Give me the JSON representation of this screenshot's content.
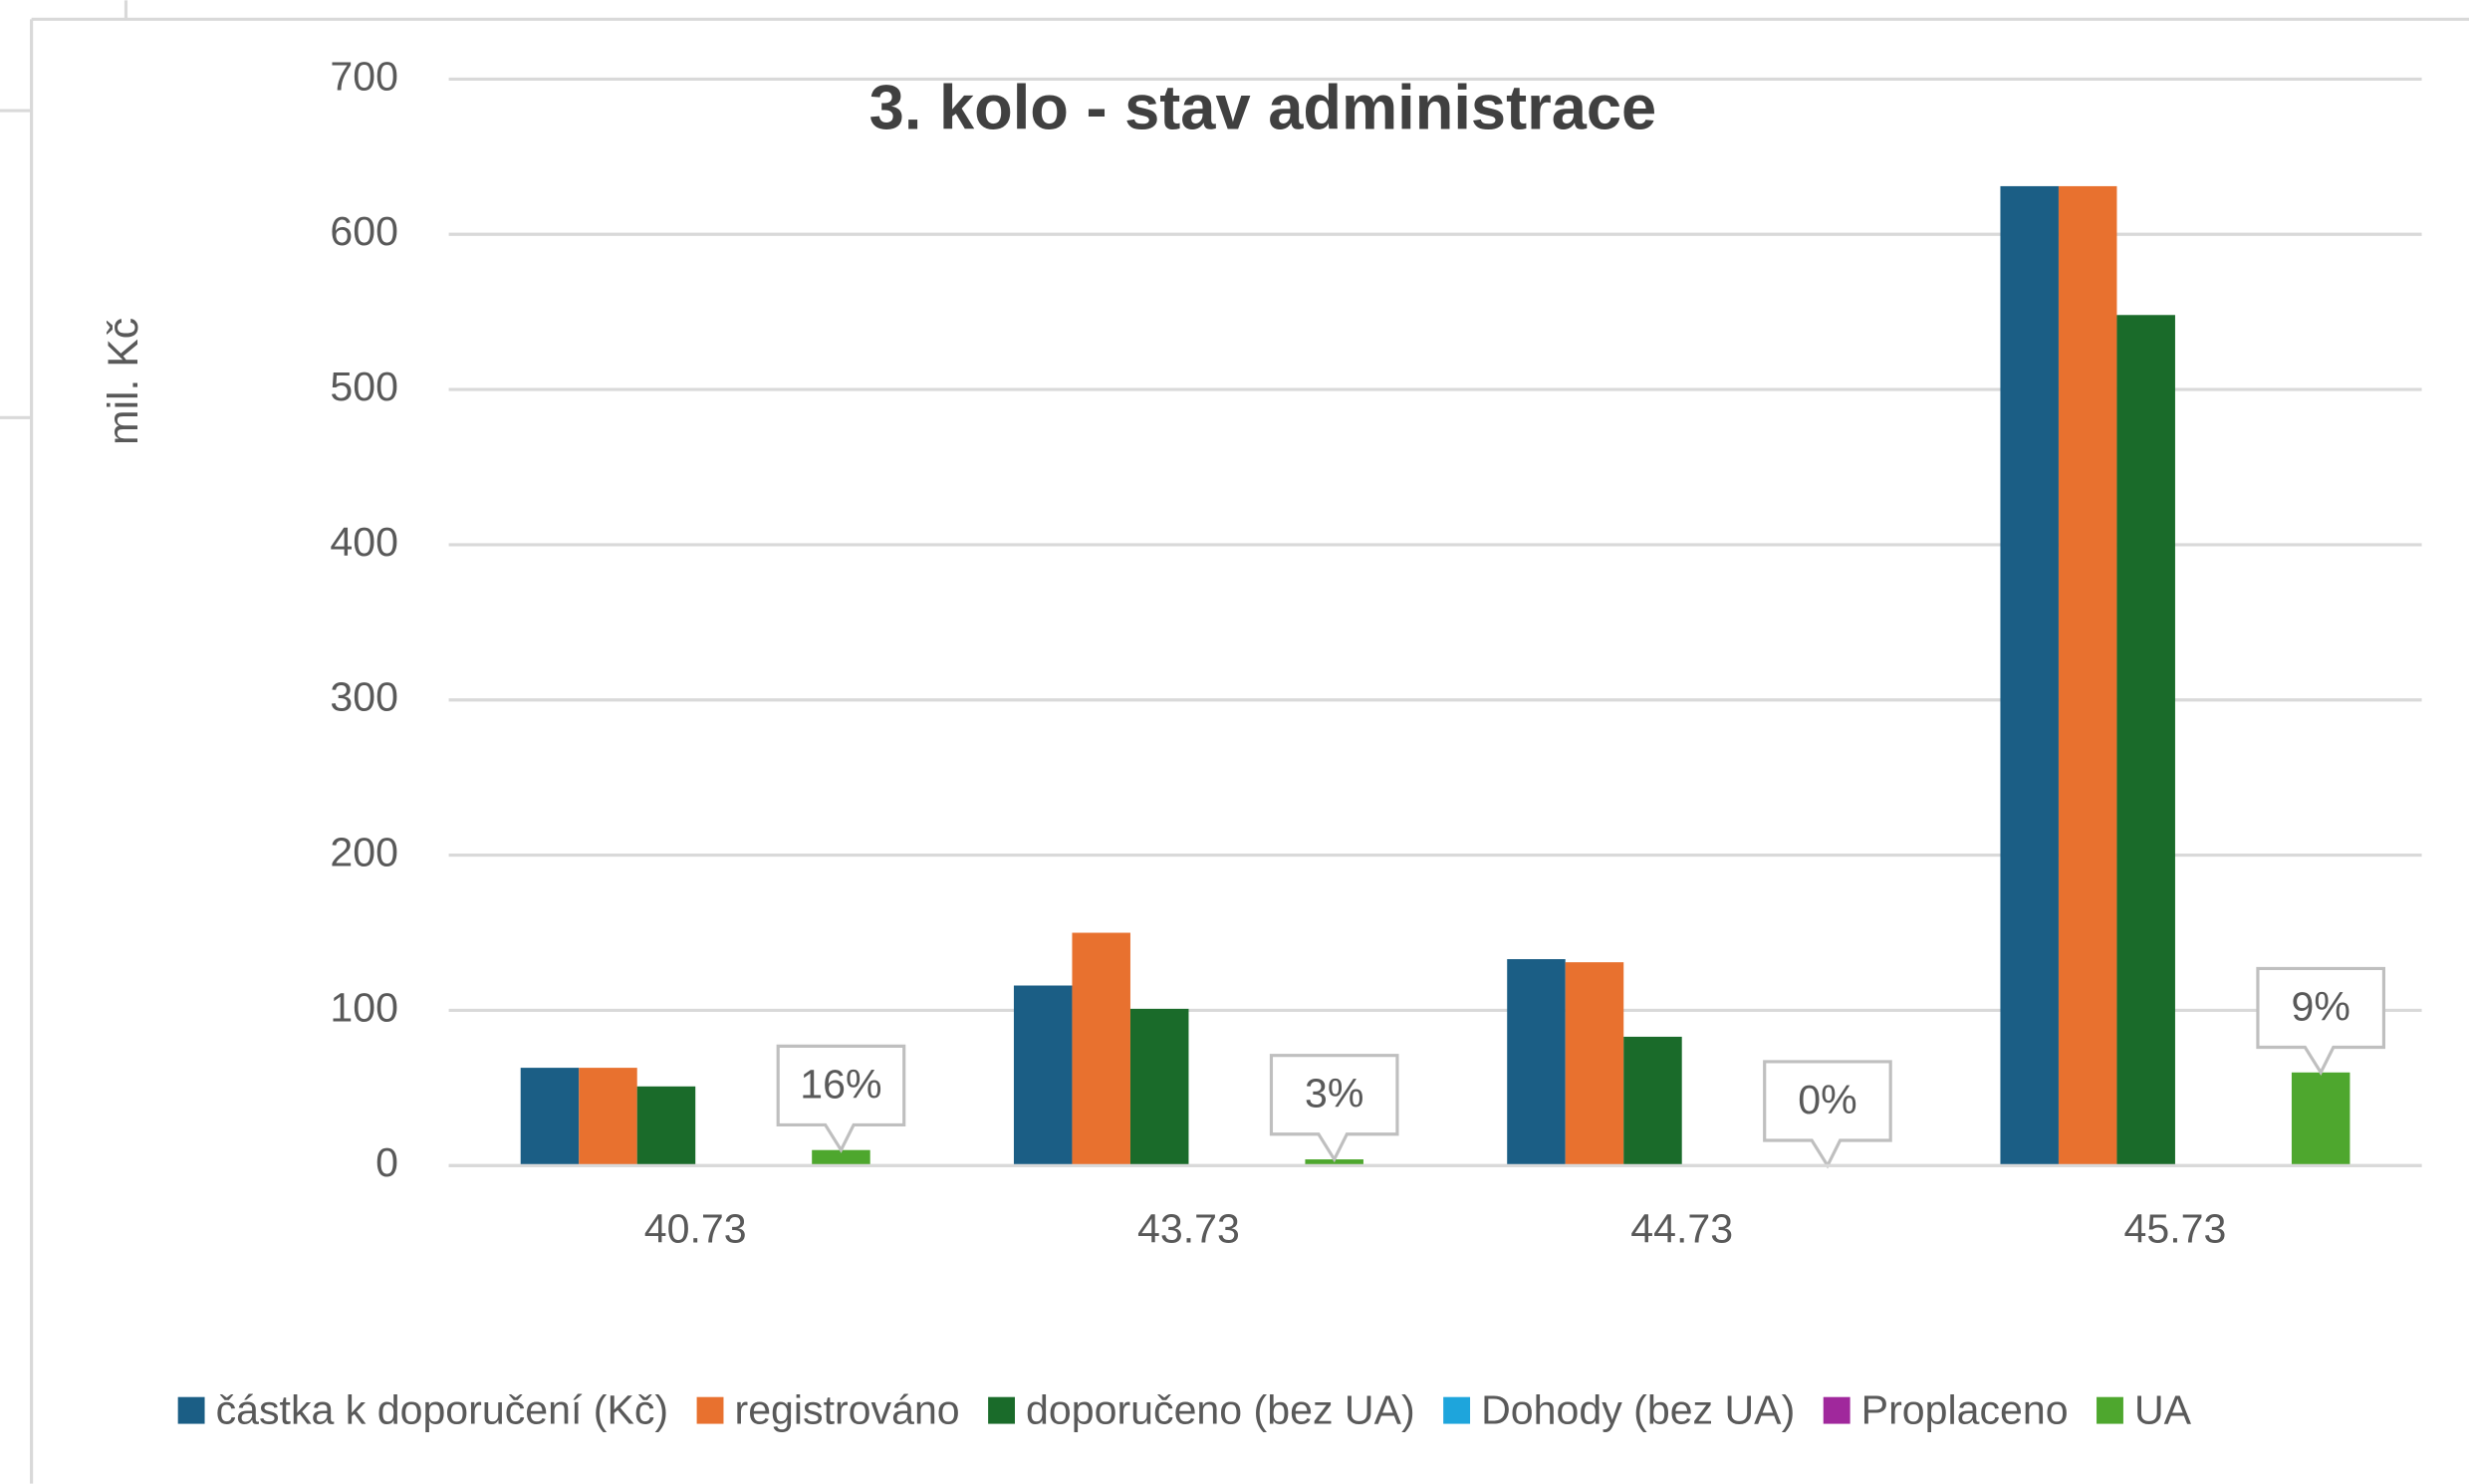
{
  "chart_data": {
    "type": "bar",
    "title": "3. kolo - stav administrace",
    "y_label": "mil. Kč",
    "categories": [
      "40.73",
      "43.73",
      "44.73",
      "45.73"
    ],
    "series": [
      {
        "name": "částka k doporučení (Kč)",
        "color": "#1b5e85",
        "values": [
          63,
          116,
          133,
          631
        ]
      },
      {
        "name": "registrováno",
        "color": "#e8712f",
        "values": [
          63,
          150,
          131,
          631
        ]
      },
      {
        "name": "doporučeno (bez UA)",
        "color": "#1a6b2a",
        "values": [
          51,
          101,
          83,
          548
        ]
      },
      {
        "name": "Dohody (bez UA)",
        "color": "#1ea5dc",
        "values": [
          0,
          0,
          0,
          0
        ]
      },
      {
        "name": "Proplaceno",
        "color": "#a0289c",
        "values": [
          0,
          0,
          0,
          0
        ]
      },
      {
        "name": "UA",
        "color": "#4ea72e",
        "values": [
          10,
          4,
          0,
          60
        ]
      }
    ],
    "annotations": [
      "16%",
      "3%",
      "0%",
      "9%"
    ],
    "ylim": [
      0,
      700
    ],
    "yticks": [
      0,
      100,
      200,
      300,
      400,
      500,
      600,
      700
    ],
    "grid": true,
    "legend": "bottom"
  }
}
